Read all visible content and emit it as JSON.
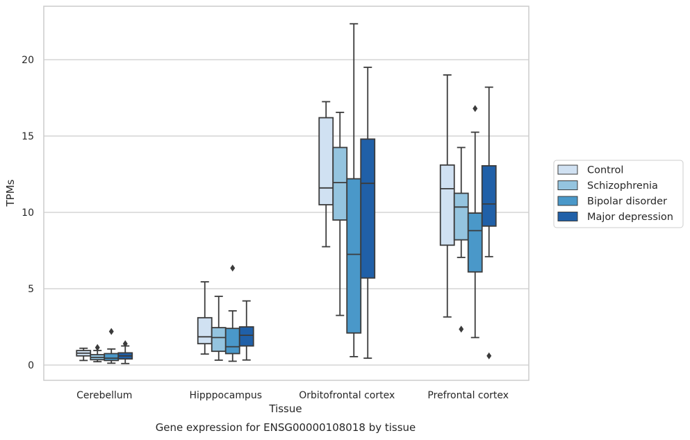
{
  "chart_data": {
    "type": "box",
    "caption": "Gene expression for ENSG00000108018 by tissue",
    "xlabel": "Tissue",
    "ylabel": "TPMs",
    "ylim": [
      -1,
      23.5
    ],
    "yticks": [
      0,
      5,
      10,
      15,
      20
    ],
    "grid": "horizontal",
    "legend_position": "right",
    "categories": [
      "Cerebellum",
      "Hipppocampus",
      "Orbitofrontal cortex",
      "Prefrontal cortex"
    ],
    "series": [
      {
        "name": "Control",
        "color": "#d0e1f2",
        "boxes": [
          {
            "whislo": 0.3,
            "q1": 0.6,
            "med": 0.78,
            "q3": 0.95,
            "whishi": 1.1,
            "fliers": []
          },
          {
            "whislo": 0.72,
            "q1": 1.4,
            "med": 1.85,
            "q3": 3.1,
            "whishi": 5.45,
            "fliers": []
          },
          {
            "whislo": 7.75,
            "q1": 10.5,
            "med": 11.6,
            "q3": 16.2,
            "whishi": 17.25,
            "fliers": []
          },
          {
            "whislo": 3.15,
            "q1": 7.85,
            "med": 11.55,
            "q3": 13.1,
            "whishi": 19.0,
            "fliers": []
          }
        ]
      },
      {
        "name": "Schizophrenia",
        "color": "#94c4df",
        "boxes": [
          {
            "whislo": 0.22,
            "q1": 0.35,
            "med": 0.5,
            "q3": 0.68,
            "whishi": 0.95,
            "fliers": [
              1.15
            ]
          },
          {
            "whislo": 0.32,
            "q1": 0.9,
            "med": 1.8,
            "q3": 2.45,
            "whishi": 4.5,
            "fliers": []
          },
          {
            "whislo": 3.25,
            "q1": 9.5,
            "med": 11.95,
            "q3": 14.25,
            "whishi": 16.55,
            "fliers": []
          },
          {
            "whislo": 7.05,
            "q1": 8.2,
            "med": 10.35,
            "q3": 11.25,
            "whishi": 14.25,
            "fliers": [
              2.35
            ]
          }
        ]
      },
      {
        "name": "Bipolar disorder",
        "color": "#4a98c9",
        "boxes": [
          {
            "whislo": 0.12,
            "q1": 0.3,
            "med": 0.45,
            "q3": 0.75,
            "whishi": 1.05,
            "fliers": [
              2.2
            ]
          },
          {
            "whislo": 0.25,
            "q1": 0.75,
            "med": 1.2,
            "q3": 2.4,
            "whishi": 3.55,
            "fliers": [
              6.35
            ]
          },
          {
            "whislo": 0.55,
            "q1": 2.1,
            "med": 7.25,
            "q3": 12.2,
            "whishi": 22.35,
            "fliers": []
          },
          {
            "whislo": 1.8,
            "q1": 6.1,
            "med": 8.8,
            "q3": 9.95,
            "whishi": 15.25,
            "fliers": [
              16.8
            ]
          }
        ]
      },
      {
        "name": "Major depression",
        "color": "#2060a8",
        "boxes": [
          {
            "whislo": 0.1,
            "q1": 0.4,
            "med": 0.6,
            "q3": 0.8,
            "whishi": 1.25,
            "fliers": [
              1.4
            ]
          },
          {
            "whislo": 0.33,
            "q1": 1.25,
            "med": 1.95,
            "q3": 2.5,
            "whishi": 4.2,
            "fliers": []
          },
          {
            "whislo": 0.45,
            "q1": 5.7,
            "med": 11.9,
            "q3": 14.8,
            "whishi": 19.5,
            "fliers": []
          },
          {
            "whislo": 7.1,
            "q1": 9.1,
            "med": 10.55,
            "q3": 13.05,
            "whishi": 18.2,
            "fliers": [
              0.6
            ]
          }
        ]
      }
    ]
  }
}
